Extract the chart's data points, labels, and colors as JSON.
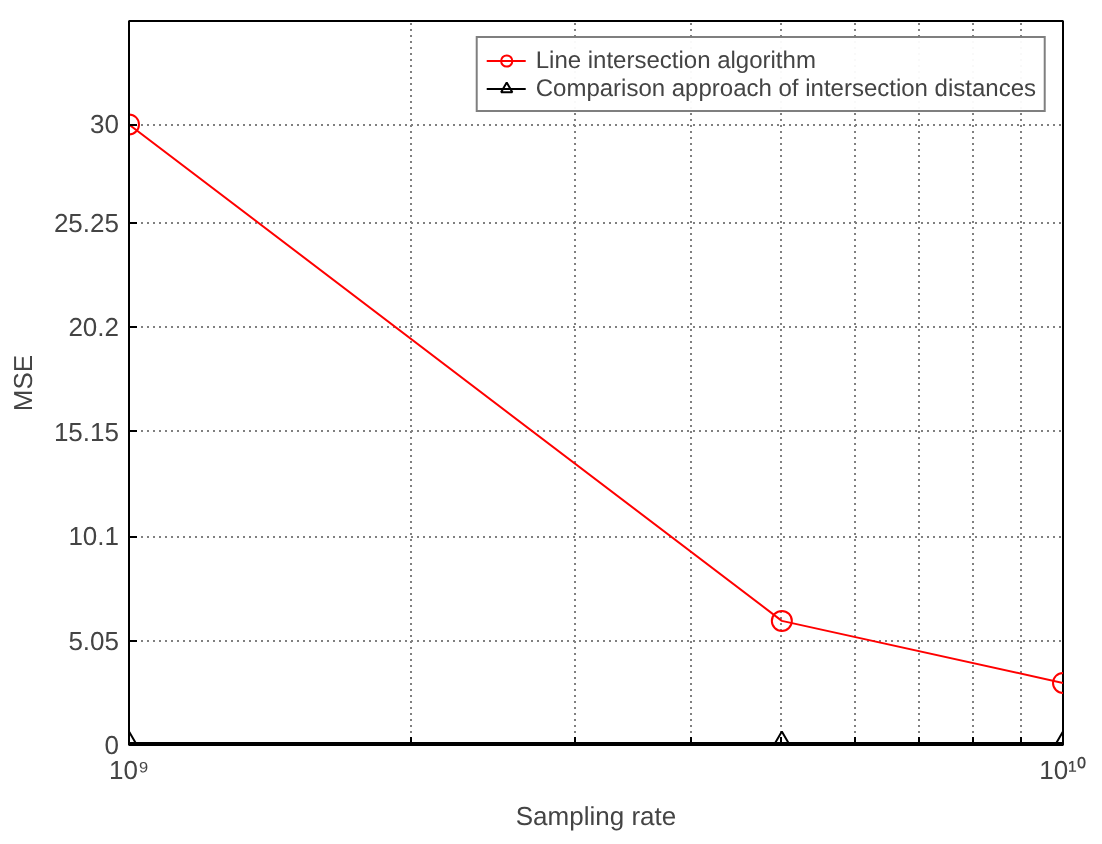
{
  "chart_data": {
    "type": "line",
    "xlabel": "Sampling rate",
    "ylabel": "MSE",
    "x": [
      1000000000,
      5000000000,
      10000000000
    ],
    "series": [
      {
        "name": "Line intersection algorithm",
        "color": "#ff0000",
        "marker": "circle",
        "values": [
          30,
          6,
          3
        ]
      },
      {
        "name": "Comparison approach of intersection distances",
        "color": "#000000",
        "marker": "triangle",
        "values": [
          0.1,
          0.1,
          0.1
        ]
      }
    ],
    "log": "x",
    "xlim": [
      1000000000,
      10000000000
    ],
    "ylim": [
      0,
      35
    ],
    "xticks": [
      {
        "value": 1000000000,
        "label": "10⁹"
      },
      {
        "value": 2000000000,
        "label": null
      },
      {
        "value": 3000000000,
        "label": null
      },
      {
        "value": 4000000000,
        "label": null
      },
      {
        "value": 5000000000,
        "label": null
      },
      {
        "value": 6000000000,
        "label": null
      },
      {
        "value": 7000000000,
        "label": null
      },
      {
        "value": 8000000000,
        "label": null
      },
      {
        "value": 9000000000,
        "label": null
      },
      {
        "value": 10000000000,
        "label": "10¹⁰"
      }
    ],
    "yticks": [
      0,
      5.05,
      10.1,
      15.15,
      20.2,
      25.25,
      30
    ],
    "grid": true,
    "legend": "top right",
    "line_style": "solid"
  }
}
